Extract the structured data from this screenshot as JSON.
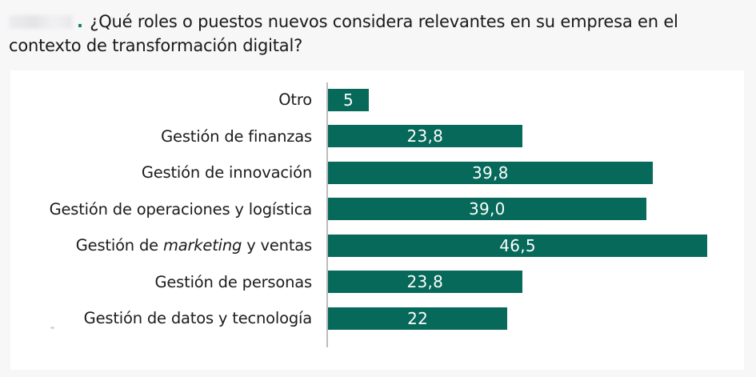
{
  "page": {
    "background_color": "#f7f7f8",
    "card_background_color": "#ffffff"
  },
  "title": {
    "period": ".",
    "period_color": "#0c7a66",
    "text": "¿Qué roles o puestos nuevos considera relevantes en su empresa en el contexto de transformación digital?"
  },
  "chart_data": {
    "type": "bar",
    "orientation": "horizontal",
    "title": "",
    "xlabel": "",
    "ylabel": "",
    "grid": false,
    "legend": false,
    "xlim": [
      0,
      51
    ],
    "categories": [
      "Otro",
      "Gestión de finanzas",
      "Gestión de innovación",
      "Gestión de operaciones y logística",
      "Gestión de marketing y ventas",
      "Gestión de personas",
      "Gestión de datos y tecnología"
    ],
    "category_parts": {
      "4": [
        {
          "text": "Gestión de ",
          "italic": false
        },
        {
          "text": "marketing",
          "italic": true
        },
        {
          "text": " y ventas",
          "italic": false
        }
      ]
    },
    "values": [
      5,
      23.8,
      39.8,
      39.0,
      46.5,
      23.8,
      22
    ],
    "value_labels": [
      "5",
      "23,8",
      "39,8",
      "39,0",
      "46,5",
      "23,8",
      "22"
    ],
    "bar_color": "#06695A",
    "axis_color": "#bcbcbe",
    "value_label_color": "#fcfdfd",
    "category_label_color": "#1c1c1c"
  }
}
